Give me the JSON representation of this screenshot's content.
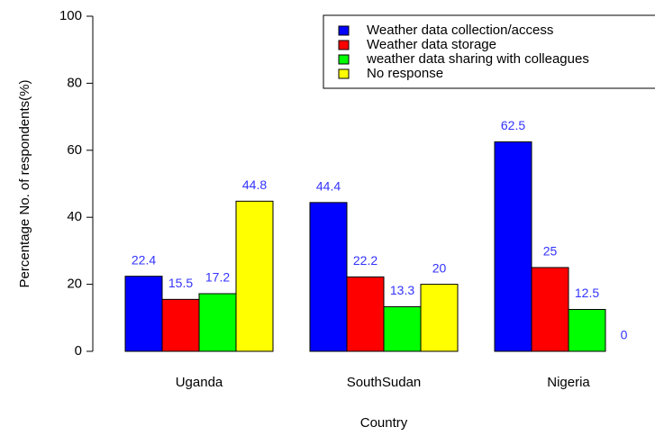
{
  "chart_data": {
    "type": "bar",
    "x_label": "Country",
    "y_label": "Percentage No. of respondents(%)",
    "categories": [
      "Uganda",
      "SouthSudan",
      "Nigeria"
    ],
    "series": [
      {
        "name": "Weather data collection/access",
        "color": "#0000ff",
        "values": [
          22.4,
          44.4,
          62.5
        ]
      },
      {
        "name": "Weather data storage",
        "color": "#ff0000",
        "values": [
          15.5,
          22.2,
          25
        ]
      },
      {
        "name": "weather data sharing with colleagues",
        "color": "#00ff00",
        "values": [
          17.2,
          13.3,
          12.5
        ]
      },
      {
        "name": "No response",
        "color": "#ffff00",
        "values": [
          44.8,
          20,
          0
        ]
      }
    ],
    "ylim": [
      0,
      100
    ],
    "yticks": [
      0,
      20,
      40,
      60,
      80,
      100
    ],
    "legend": "top-right"
  }
}
